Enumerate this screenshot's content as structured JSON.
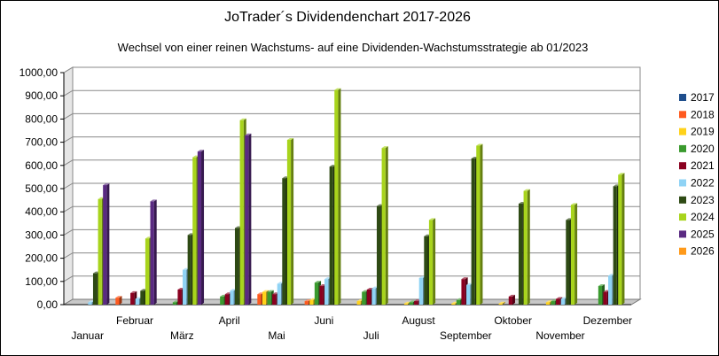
{
  "chart_data": {
    "type": "bar",
    "title": "JoTrader´s Dividendenchart 2017-2026",
    "subtitle": "Wechsel von einer reinen Wachstums- auf eine Dividenden-Wachstumsstrategie ab 01/2023",
    "categories": [
      "Januar",
      "Februar",
      "März",
      "April",
      "Mai",
      "Juni",
      "Juli",
      "August",
      "September",
      "Oktober",
      "November",
      "Dezember"
    ],
    "ylim": [
      0,
      1000
    ],
    "yticks": [
      "0,00",
      "100,00",
      "200,00",
      "300,00",
      "400,00",
      "500,00",
      "600,00",
      "700,00",
      "800,00",
      "900,00",
      "1000,00"
    ],
    "grid": true,
    "legend_position": "right",
    "series": [
      {
        "name": "2017",
        "color": "#1f4e8c",
        "values": [
          0,
          0,
          0,
          0,
          0,
          0,
          0,
          0,
          0,
          0,
          0,
          0
        ]
      },
      {
        "name": "2018",
        "color": "#ff5a1f",
        "values": [
          0,
          30,
          0,
          0,
          45,
          15,
          0,
          0,
          0,
          0,
          0,
          0
        ]
      },
      {
        "name": "2019",
        "color": "#ffd21a",
        "values": [
          0,
          0,
          0,
          0,
          55,
          20,
          15,
          5,
          5,
          5,
          10,
          0
        ]
      },
      {
        "name": "2020",
        "color": "#3a9a2e",
        "values": [
          0,
          0,
          10,
          35,
          55,
          95,
          55,
          10,
          20,
          0,
          15,
          80
        ]
      },
      {
        "name": "2021",
        "color": "#8a0020",
        "values": [
          0,
          50,
          65,
          45,
          45,
          80,
          65,
          15,
          110,
          35,
          25,
          55
        ]
      },
      {
        "name": "2022",
        "color": "#8fd3f5",
        "values": [
          10,
          25,
          150,
          60,
          90,
          110,
          70,
          115,
          85,
          0,
          25,
          125
        ]
      },
      {
        "name": "2023",
        "color": "#2e4a14",
        "values": [
          135,
          60,
          300,
          330,
          545,
          595,
          425,
          295,
          630,
          435,
          365,
          510
        ]
      },
      {
        "name": "2024",
        "color": "#a8d41c",
        "values": [
          455,
          285,
          635,
          795,
          710,
          925,
          675,
          365,
          685,
          490,
          430,
          560
        ]
      },
      {
        "name": "2025",
        "color": "#5a2a82",
        "values": [
          515,
          445,
          660,
          730,
          0,
          0,
          0,
          0,
          0,
          0,
          0,
          0
        ]
      },
      {
        "name": "2026",
        "color": "#ff9a1a",
        "values": [
          0,
          0,
          0,
          0,
          0,
          0,
          0,
          0,
          0,
          0,
          0,
          0
        ]
      }
    ]
  }
}
